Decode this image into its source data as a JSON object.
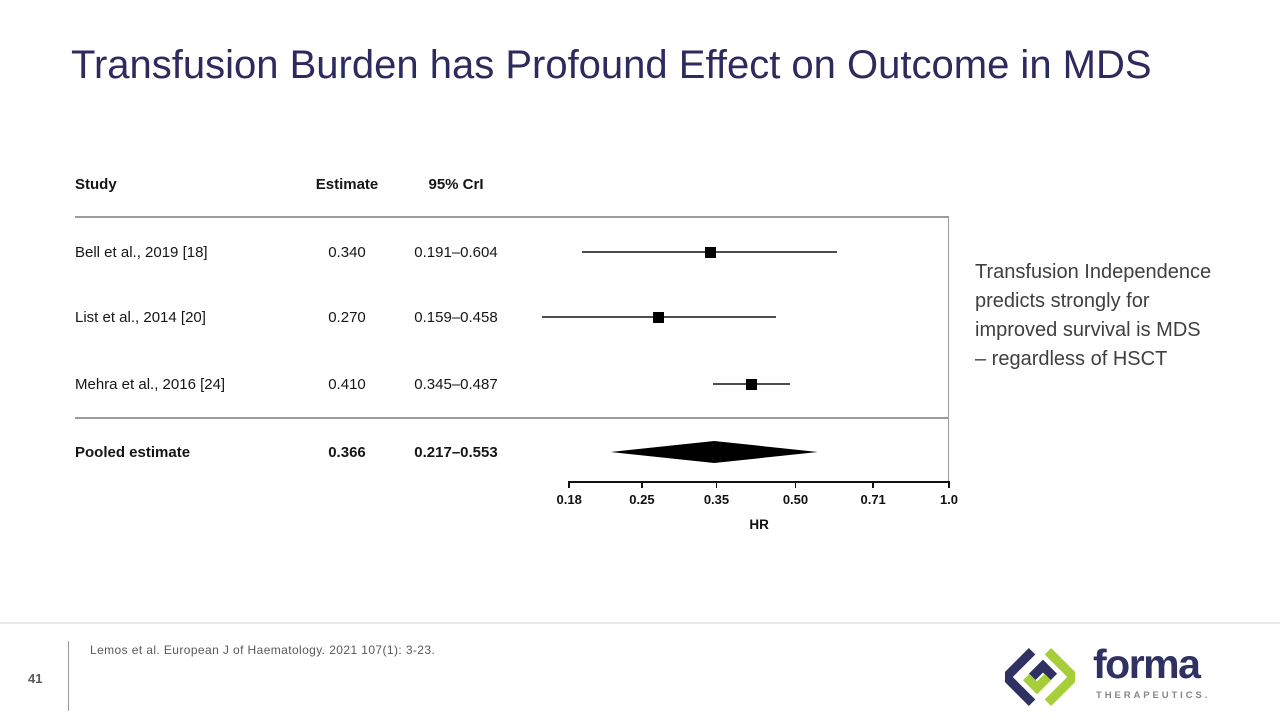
{
  "slide": {
    "title": "Transfusion Burden has Profound Effect on Outcome in MDS",
    "side_note": "Transfusion Independence predicts strongly for improved survival is MDS – regardless of HSCT",
    "page_number": "41",
    "citation": "Lemos et al. European J of Haematology. 2021  107(1): 3-23."
  },
  "logo": {
    "brand": "forma",
    "sub_brand": "THERAPEUTICS.",
    "colors": {
      "navy": "#2e3162",
      "green": "#a6ce39",
      "gray": "#85888b"
    }
  },
  "chart_data": {
    "type": "forest",
    "scale": "log",
    "xlabel": "HR",
    "columns": {
      "study": "Study",
      "estimate": "Estimate",
      "ci": "95% CrI"
    },
    "axis_ticks": [
      0.18,
      0.25,
      0.35,
      0.5,
      0.71,
      1.0
    ],
    "axis_tick_labels": [
      "0.18",
      "0.25",
      "0.35",
      "0.50",
      "0.71",
      "1.0"
    ],
    "axis_range": [
      0.18,
      1.0
    ],
    "marker_color": "#000000",
    "studies": [
      {
        "label": "Bell et al., 2019 [18]",
        "estimate": 0.34,
        "ci_low": 0.191,
        "ci_high": 0.604,
        "estimate_text": "0.340",
        "ci_text": "0.191–0.604"
      },
      {
        "label": "List et al., 2014 [20]",
        "estimate": 0.27,
        "ci_low": 0.159,
        "ci_high": 0.458,
        "estimate_text": "0.270",
        "ci_text": "0.159–0.458"
      },
      {
        "label": "Mehra et al., 2016 [24]",
        "estimate": 0.41,
        "ci_low": 0.345,
        "ci_high": 0.487,
        "estimate_text": "0.410",
        "ci_text": "0.345–0.487"
      }
    ],
    "pooled": {
      "label": "Pooled estimate",
      "estimate": 0.366,
      "ci_low": 0.217,
      "ci_high": 0.553,
      "estimate_text": "0.366",
      "ci_text": "0.217–0.553"
    }
  }
}
